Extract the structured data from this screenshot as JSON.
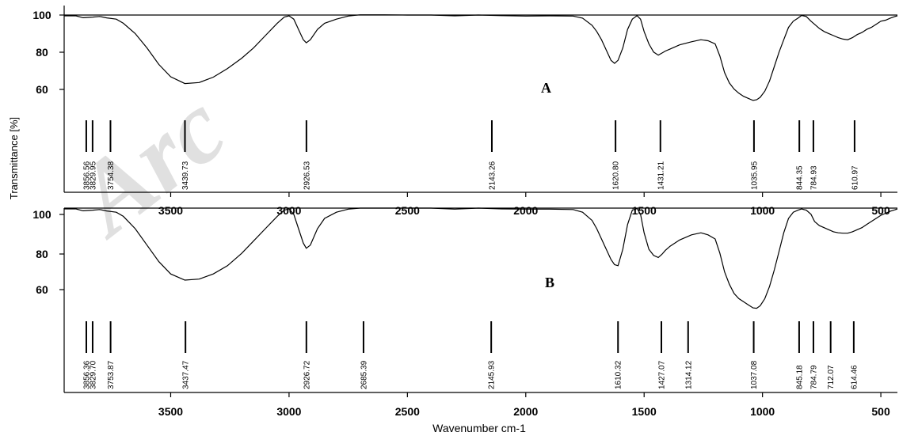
{
  "chart_data": [
    {
      "panel": "A",
      "type": "line",
      "xlabel": "",
      "xlim": [
        3950,
        430
      ],
      "x_ticks": [
        3500,
        3000,
        2500,
        2000,
        1500,
        1000,
        500
      ],
      "ylabel": "Transmittance [%]",
      "ylim": [
        40,
        100
      ],
      "y_ticks": [
        100,
        80,
        60
      ],
      "series": [
        {
          "x": [
            3950,
            3900,
            3870,
            3830,
            3800,
            3770,
            3730,
            3700,
            3650,
            3600,
            3550,
            3500,
            3440,
            3380,
            3320,
            3260,
            3200,
            3150,
            3100,
            3050,
            3020,
            3000,
            2980,
            2960,
            2940,
            2927,
            2910,
            2880,
            2850,
            2800,
            2750,
            2700,
            2600,
            2500,
            2400,
            2300,
            2200,
            2100,
            2000,
            1900,
            1800,
            1760,
            1720,
            1700,
            1680,
            1660,
            1640,
            1625,
            1610,
            1590,
            1570,
            1550,
            1530,
            1515,
            1500,
            1480,
            1460,
            1440,
            1425,
            1410,
            1390,
            1350,
            1300,
            1260,
            1230,
            1200,
            1180,
            1160,
            1140,
            1120,
            1100,
            1080,
            1060,
            1040,
            1025,
            1010,
            990,
            970,
            950,
            930,
            910,
            890,
            870,
            850,
            835,
            815,
            795,
            780,
            760,
            740,
            720,
            700,
            680,
            660,
            640,
            620,
            600,
            580,
            560,
            540,
            520,
            500,
            480,
            460,
            440,
            430
          ],
          "y": [
            99.6,
            99.6,
            98.7,
            99.0,
            99.3,
            98.6,
            98.0,
            96,
            91,
            84,
            76,
            70,
            66.7,
            67.2,
            69.8,
            74,
            79,
            84,
            90,
            96,
            99,
            99.6,
            98,
            93,
            88,
            86.5,
            88,
            93,
            96,
            98,
            99.5,
            100.1,
            100.1,
            100,
            100,
            99.6,
            100,
            99.7,
            99.5,
            99.6,
            99.5,
            98.5,
            95,
            92,
            88,
            83,
            78,
            76.5,
            78,
            84,
            93,
            98,
            99.7,
            98,
            92,
            86,
            82,
            80.5,
            81.5,
            82.5,
            83.5,
            85.5,
            87,
            88,
            87.5,
            86,
            80,
            72,
            67,
            64,
            62,
            60.5,
            59.5,
            58.5,
            58.8,
            60,
            63,
            68,
            75,
            82,
            88,
            94,
            97,
            98.5,
            99.8,
            99.3,
            97,
            95.5,
            93.5,
            92,
            91,
            90,
            89,
            88.3,
            88,
            89,
            90.5,
            91.5,
            93,
            94,
            95.5,
            97,
            97.5,
            98.5,
            99.3,
            99.6
          ]
        }
      ],
      "peak_labels": [
        "3856.56",
        "3829.95",
        "3754.38",
        "3439.73",
        "2926.53",
        "2143.26",
        "1620.80",
        "1431.21",
        "1035.95",
        "844.35",
        "784.93",
        "610.97"
      ],
      "peak_positions": [
        3856.56,
        3829.95,
        3754.38,
        3439.73,
        2926.53,
        2143.26,
        1620.8,
        1431.21,
        1035.95,
        844.35,
        784.93,
        610.97
      ],
      "annotation": "A"
    },
    {
      "panel": "B",
      "type": "line",
      "xlabel": "Wavenumber cm-1",
      "xlim": [
        3950,
        430
      ],
      "x_ticks": [
        3500,
        3000,
        2500,
        2000,
        1500,
        1000,
        500
      ],
      "ylabel": "",
      "ylim": [
        40,
        100
      ],
      "y_ticks": [
        100,
        80,
        60
      ],
      "y_tick_labels": [
        "100",
        "80",
        "60"
      ],
      "series": [
        {
          "x": [
            3950,
            3900,
            3870,
            3830,
            3800,
            3770,
            3730,
            3700,
            3650,
            3600,
            3550,
            3500,
            3440,
            3380,
            3320,
            3260,
            3200,
            3150,
            3100,
            3050,
            3020,
            3000,
            2980,
            2960,
            2940,
            2927,
            2910,
            2880,
            2850,
            2800,
            2750,
            2700,
            2600,
            2500,
            2400,
            2300,
            2200,
            2100,
            2000,
            1900,
            1800,
            1760,
            1720,
            1700,
            1680,
            1660,
            1640,
            1625,
            1610,
            1590,
            1570,
            1550,
            1530,
            1515,
            1500,
            1480,
            1460,
            1440,
            1425,
            1410,
            1390,
            1350,
            1300,
            1260,
            1230,
            1200,
            1180,
            1160,
            1140,
            1120,
            1100,
            1080,
            1060,
            1040,
            1025,
            1010,
            990,
            970,
            950,
            930,
            910,
            890,
            870,
            850,
            835,
            815,
            795,
            780,
            760,
            740,
            720,
            700,
            680,
            660,
            640,
            620,
            600,
            580,
            560,
            540,
            520,
            500,
            480,
            460,
            440,
            430
          ],
          "y": [
            99.6,
            99.6,
            98.7,
            99.0,
            99.3,
            98.6,
            98.0,
            96,
            90,
            82,
            74,
            68,
            65,
            65.5,
            68,
            72,
            78,
            84,
            90,
            96,
            99,
            99.6,
            97,
            90,
            83,
            80.5,
            82,
            90,
            95,
            98,
            99.5,
            100,
            100,
            100,
            100,
            99.5,
            100,
            99.6,
            99.5,
            99.5,
            99.3,
            98,
            94,
            90,
            85,
            80,
            75,
            72.5,
            72,
            80,
            92,
            99,
            99.8,
            97,
            88,
            80,
            77,
            76,
            77.5,
            79.5,
            81.5,
            84.5,
            87,
            88,
            87,
            85,
            78,
            69,
            63,
            58.5,
            56,
            54.5,
            53,
            51.5,
            51.3,
            52.5,
            56,
            62,
            70,
            79,
            88,
            95,
            98,
            99,
            99.6,
            99,
            97,
            93.5,
            91.5,
            90.5,
            89.5,
            88.5,
            88,
            87.8,
            87.8,
            88.5,
            89.5,
            90.5,
            92,
            93.5,
            95,
            96.5,
            97.5,
            98.5,
            99.2,
            99.6
          ]
        }
      ],
      "peak_labels": [
        "3856.36",
        "3829.70",
        "3753.87",
        "3437.47",
        "2926.72",
        "2685.39",
        "2145.93",
        "1610.32",
        "1427.07",
        "1314.12",
        "1037.08",
        "845.18",
        "784.79",
        "712.07",
        "614.46"
      ],
      "peak_positions": [
        3856.36,
        3829.7,
        3753.87,
        3437.47,
        2926.72,
        2685.39,
        2145.93,
        1610.32,
        1427.07,
        1314.12,
        1037.08,
        845.18,
        784.79,
        712.07,
        614.46
      ],
      "annotation": "B"
    }
  ],
  "watermark_text": "Arc",
  "colors": {
    "line": "#000000",
    "watermark": "#c8c8c8"
  }
}
